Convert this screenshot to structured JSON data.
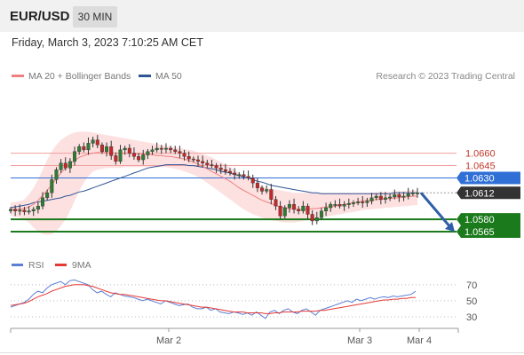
{
  "header": {
    "symbol": "EUR/USD",
    "timeframe": "30 MIN"
  },
  "datetime": "Friday, March 3, 2023 7:10:25 AM CET",
  "legend": {
    "ma20_label": "MA 20 + Bollinger Bands",
    "ma50_label": "MA 50",
    "credit": "Research © 2023 Trading Central"
  },
  "rsi_legend": {
    "rsi_label": "RSI",
    "ma_label": "9MA"
  },
  "colors": {
    "ma20": "#f08080",
    "ma50": "#2f5597",
    "bollinger_fill": "#fde1e1",
    "up": "#2e7d32",
    "down": "#c62828",
    "resistance": "#c0392b",
    "pivot": "#2f6fd6",
    "support": "#1b7a1b",
    "current": "#333333",
    "rsi": "#5b7fd6",
    "rsi_ma": "#e53935",
    "arrow": "#2f5fa8"
  },
  "chart_data": {
    "type": "candlestick",
    "ylim": [
      1.055,
      1.0695
    ],
    "x_ticks": [
      "Mar 2",
      "Mar 3",
      "Mar 4"
    ],
    "levels": [
      {
        "value": 1.066,
        "label": "1.0660",
        "kind": "resistance"
      },
      {
        "value": 1.0645,
        "label": "1.0645",
        "kind": "resistance"
      },
      {
        "value": 1.063,
        "label": "1.0630",
        "kind": "pivot"
      },
      {
        "value": 1.0612,
        "label": "1.0612",
        "kind": "current"
      },
      {
        "value": 1.058,
        "label": "1.0580",
        "kind": "support"
      },
      {
        "value": 1.0565,
        "label": "1.0565",
        "kind": "support"
      }
    ],
    "close": [
      1.0592,
      1.059,
      1.0591,
      1.0589,
      1.059,
      1.0592,
      1.0596,
      1.0606,
      1.0612,
      1.0628,
      1.064,
      1.0648,
      1.0642,
      1.065,
      1.0662,
      1.0668,
      1.0664,
      1.0672,
      1.0676,
      1.067,
      1.0662,
      1.0668,
      1.0657,
      1.065,
      1.0664,
      1.0666,
      1.066,
      1.0656,
      1.0652,
      1.0658,
      1.0662,
      1.0664,
      1.0666,
      1.0665,
      1.0666,
      1.0664,
      1.0662,
      1.066,
      1.0656,
      1.0653,
      1.0652,
      1.065,
      1.0648,
      1.0646,
      1.0645,
      1.0642,
      1.064,
      1.0638,
      1.0636,
      1.0634,
      1.0634,
      1.0632,
      1.063,
      1.0624,
      1.0618,
      1.0614,
      1.0616,
      1.0604,
      1.0596,
      1.0584,
      1.0594,
      1.0598,
      1.0592,
      1.059,
      1.0596,
      1.0586,
      1.0578,
      1.0582,
      1.059,
      1.0594,
      1.0598,
      1.0598,
      1.0596,
      1.0598,
      1.0599,
      1.06,
      1.0601,
      1.06,
      1.0602,
      1.0606,
      1.0608,
      1.0604,
      1.0606,
      1.0607,
      1.061,
      1.0607,
      1.0608,
      1.0611,
      1.0612,
      1.0612
    ],
    "ma20": [
      1.0592,
      1.0592,
      1.0592,
      1.0593,
      1.0595,
      1.0598,
      1.0603,
      1.0609,
      1.0615,
      1.0622,
      1.0629,
      1.0636,
      1.0642,
      1.0647,
      1.0651,
      1.0655,
      1.0657,
      1.0659,
      1.066,
      1.0661,
      1.0661,
      1.0661,
      1.066,
      1.066,
      1.066,
      1.066,
      1.066,
      1.0659,
      1.0659,
      1.0659,
      1.0658,
      1.0658,
      1.0657,
      1.0657,
      1.0656,
      1.0656,
      1.0655,
      1.0654,
      1.0653,
      1.0651,
      1.0649,
      1.0647,
      1.0644,
      1.0641,
      1.0638,
      1.0635,
      1.0632,
      1.0629,
      1.0626,
      1.0622,
      1.0618,
      1.0615,
      1.0612,
      1.0609,
      1.0606,
      1.0603,
      1.0601,
      1.0599,
      1.0597,
      1.0595,
      1.0594,
      1.0593,
      1.0592,
      1.0592,
      1.0592,
      1.0592,
      1.0593,
      1.0593,
      1.0594,
      1.0595,
      1.0595,
      1.0596,
      1.0597,
      1.0598,
      1.0599,
      1.06,
      1.0601,
      1.0602,
      1.0603,
      1.0603,
      1.0604,
      1.0604,
      1.0605,
      1.0605,
      1.0606,
      1.0606,
      1.0607,
      1.0607,
      1.0608,
      1.0608
    ],
    "ma50": [
      1.0594,
      1.0595,
      1.0596,
      1.0597,
      1.0598,
      1.06,
      1.0601,
      1.0602,
      1.0603,
      1.0604,
      1.0605,
      1.0606,
      1.0608,
      1.0609,
      1.0611,
      1.0613,
      1.0614,
      1.0616,
      1.0618,
      1.062,
      1.0622,
      1.0624,
      1.0626,
      1.0628,
      1.063,
      1.0632,
      1.0634,
      1.0636,
      1.0638,
      1.064,
      1.0642,
      1.0643,
      1.0644,
      1.0645,
      1.0646,
      1.0646,
      1.0646,
      1.0646,
      1.0646,
      1.0645,
      1.0645,
      1.0644,
      1.0643,
      1.0642,
      1.0641,
      1.064,
      1.0638,
      1.0637,
      1.0636,
      1.0634,
      1.0633,
      1.0631,
      1.063,
      1.0628,
      1.0626,
      1.0625,
      1.0623,
      1.0621,
      1.062,
      1.0619,
      1.0618,
      1.0617,
      1.0616,
      1.0615,
      1.0614,
      1.0613,
      1.0612,
      1.0612,
      1.0611,
      1.0611,
      1.0611,
      1.0611,
      1.0611,
      1.0611,
      1.0611,
      1.0611,
      1.0611,
      1.0611,
      1.0611,
      1.0611,
      1.0611,
      1.0611,
      1.0611,
      1.0611,
      1.0612,
      1.0612,
      1.0612,
      1.0612,
      1.0612,
      1.0612
    ],
    "bb_upper": [
      1.06,
      1.0601,
      1.0602,
      1.0604,
      1.061,
      1.0618,
      1.0628,
      1.064,
      1.0652,
      1.0662,
      1.067,
      1.0676,
      1.068,
      1.0683,
      1.0685,
      1.0686,
      1.0686,
      1.0686,
      1.0685,
      1.0684,
      1.0683,
      1.0682,
      1.0681,
      1.068,
      1.0679,
      1.0678,
      1.0677,
      1.0676,
      1.0675,
      1.0674,
      1.0673,
      1.0672,
      1.0671,
      1.067,
      1.0669,
      1.0668,
      1.0667,
      1.0666,
      1.0665,
      1.0664,
      1.0663,
      1.0661,
      1.0659,
      1.0657,
      1.0655,
      1.0652,
      1.0649,
      1.0646,
      1.0643,
      1.064,
      1.0636,
      1.0632,
      1.0628,
      1.0625,
      1.0622,
      1.062,
      1.0618,
      1.0617,
      1.0616,
      1.0615,
      1.0614,
      1.0613,
      1.0612,
      1.0612,
      1.0612,
      1.0612,
      1.0612,
      1.0612,
      1.0612,
      1.0612,
      1.0612,
      1.0612,
      1.0612,
      1.0612,
      1.0612,
      1.0612,
      1.0612,
      1.0612,
      1.0612,
      1.0612,
      1.0613,
      1.0613,
      1.0613,
      1.0613,
      1.0614,
      1.0614,
      1.0614,
      1.0615,
      1.0615,
      1.0615
    ],
    "bb_lower": [
      1.0584,
      1.0583,
      1.0582,
      1.058,
      1.0576,
      1.057,
      1.0565,
      1.0562,
      1.0561,
      1.0562,
      1.0566,
      1.0572,
      1.058,
      1.059,
      1.0602,
      1.0614,
      1.0624,
      1.0632,
      1.0638,
      1.064,
      1.0641,
      1.0642,
      1.0642,
      1.0642,
      1.0642,
      1.0643,
      1.0643,
      1.0643,
      1.0643,
      1.0643,
      1.0643,
      1.0643,
      1.0643,
      1.0643,
      1.0643,
      1.0642,
      1.0641,
      1.064,
      1.0638,
      1.0636,
      1.0634,
      1.0631,
      1.0628,
      1.0624,
      1.062,
      1.0616,
      1.0612,
      1.0608,
      1.0604,
      1.06,
      1.0596,
      1.0592,
      1.0589,
      1.0586,
      1.0584,
      1.0582,
      1.058,
      1.0579,
      1.0578,
      1.0577,
      1.0576,
      1.0576,
      1.0576,
      1.0577,
      1.0578,
      1.0579,
      1.058,
      1.0581,
      1.0582,
      1.0583,
      1.0584,
      1.0585,
      1.0586,
      1.0587,
      1.0588,
      1.0589,
      1.059,
      1.0591,
      1.0592,
      1.0592,
      1.0593,
      1.0593,
      1.0594,
      1.0594,
      1.0595,
      1.0595,
      1.0596,
      1.0596,
      1.0597,
      1.0597
    ],
    "projection": {
      "from": 1.0612,
      "to": 1.0565
    },
    "rsi": {
      "ticks": [
        70,
        50,
        30
      ],
      "ylim": [
        20,
        82
      ],
      "values": [
        42,
        44,
        46,
        48,
        52,
        58,
        62,
        60,
        66,
        70,
        72,
        74,
        70,
        75,
        76,
        74,
        72,
        70,
        64,
        60,
        62,
        58,
        55,
        60,
        58,
        56,
        55,
        54,
        52,
        50,
        52,
        50,
        48,
        46,
        50,
        48,
        46,
        44,
        45,
        46,
        42,
        40,
        40,
        42,
        38,
        40,
        36,
        35,
        34,
        36,
        35,
        33,
        35,
        32,
        36,
        32,
        28,
        36,
        38,
        34,
        38,
        40,
        36,
        34,
        38,
        40,
        36,
        32,
        38,
        40,
        42,
        44,
        46,
        48,
        50,
        48,
        52,
        50,
        52,
        54,
        52,
        54,
        55,
        54,
        56,
        55,
        56,
        57,
        58,
        62
      ],
      "ma": [
        44,
        45,
        46,
        47,
        49,
        52,
        55,
        57,
        59,
        62,
        64,
        66,
        68,
        69,
        70,
        70,
        70,
        69,
        68,
        66,
        64,
        62,
        60,
        59,
        58,
        58,
        57,
        56,
        55,
        54,
        53,
        52,
        51,
        50,
        50,
        49,
        48,
        47,
        46,
        45,
        44,
        43,
        42,
        42,
        41,
        40,
        39,
        38,
        37,
        36,
        36,
        36,
        35,
        35,
        35,
        35,
        34,
        34,
        35,
        35,
        36,
        36,
        36,
        36,
        37,
        37,
        37,
        37,
        38,
        38,
        39,
        40,
        41,
        42,
        43,
        44,
        45,
        46,
        47,
        48,
        49,
        50,
        51,
        51,
        52,
        52,
        53,
        53,
        54,
        54
      ]
    }
  }
}
